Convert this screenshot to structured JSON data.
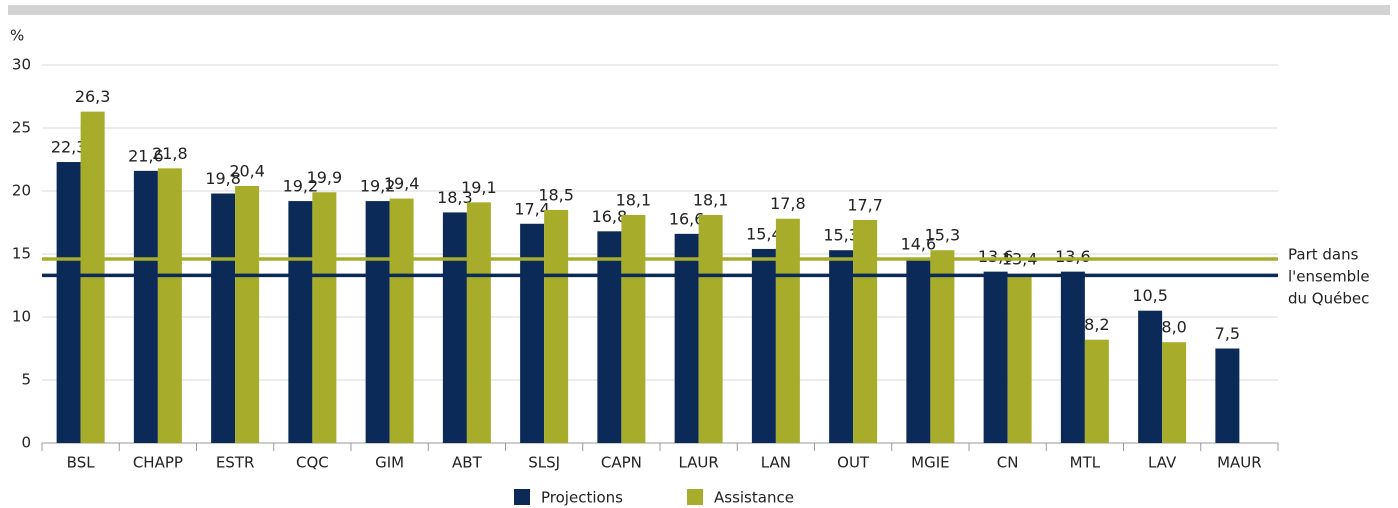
{
  "chart_data": {
    "type": "bar",
    "y_label": "%",
    "categories": [
      "BSL",
      "CHAPP",
      "ESTR",
      "CQC",
      "GIM",
      "ABT",
      "SLSJ",
      "CAPN",
      "LAUR",
      "LAN",
      "OUT",
      "MGIE",
      "CN",
      "MTL",
      "LAV",
      "MAUR"
    ],
    "series": [
      {
        "name": "Projections",
        "color": "#0c2a57",
        "values": [
          22.3,
          21.6,
          19.8,
          19.2,
          19.2,
          18.3,
          17.4,
          16.8,
          16.6,
          15.4,
          15.3,
          14.6,
          13.6,
          13.6,
          10.5,
          7.5
        ],
        "value_labels": [
          "22,3",
          "21,6",
          "19,8",
          "19,2",
          "19,2",
          "18,3",
          "17,4",
          "16,8",
          "16,6",
          "15,4",
          "15,3",
          "14,6",
          "13,6",
          "13,6",
          "10,5",
          "7,5"
        ]
      },
      {
        "name": "Assistance",
        "color": "#a7ad2b",
        "values": [
          26.3,
          21.8,
          20.4,
          19.9,
          19.4,
          19.1,
          18.5,
          18.1,
          18.1,
          17.8,
          17.7,
          15.3,
          13.4,
          8.2,
          8.0,
          null
        ],
        "value_labels": [
          "26,3",
          "21,8",
          "20,4",
          "19,9",
          "19,4",
          "19,1",
          "18,5",
          "18,1",
          "18,1",
          "17,8",
          "17,7",
          "15,3",
          "13,4",
          "8,2",
          "8,0",
          null
        ]
      }
    ],
    "reference_lines": [
      {
        "value": 14.6,
        "color": "#a7ad2b"
      },
      {
        "value": 13.3,
        "color": "#0c2a57"
      }
    ],
    "reference_annotation": [
      "Part dans",
      "l'ensemble",
      "du Québec"
    ],
    "ylim": [
      0,
      30
    ],
    "yticks": [
      0,
      5,
      10,
      15,
      20,
      25,
      30
    ],
    "grid": true
  }
}
